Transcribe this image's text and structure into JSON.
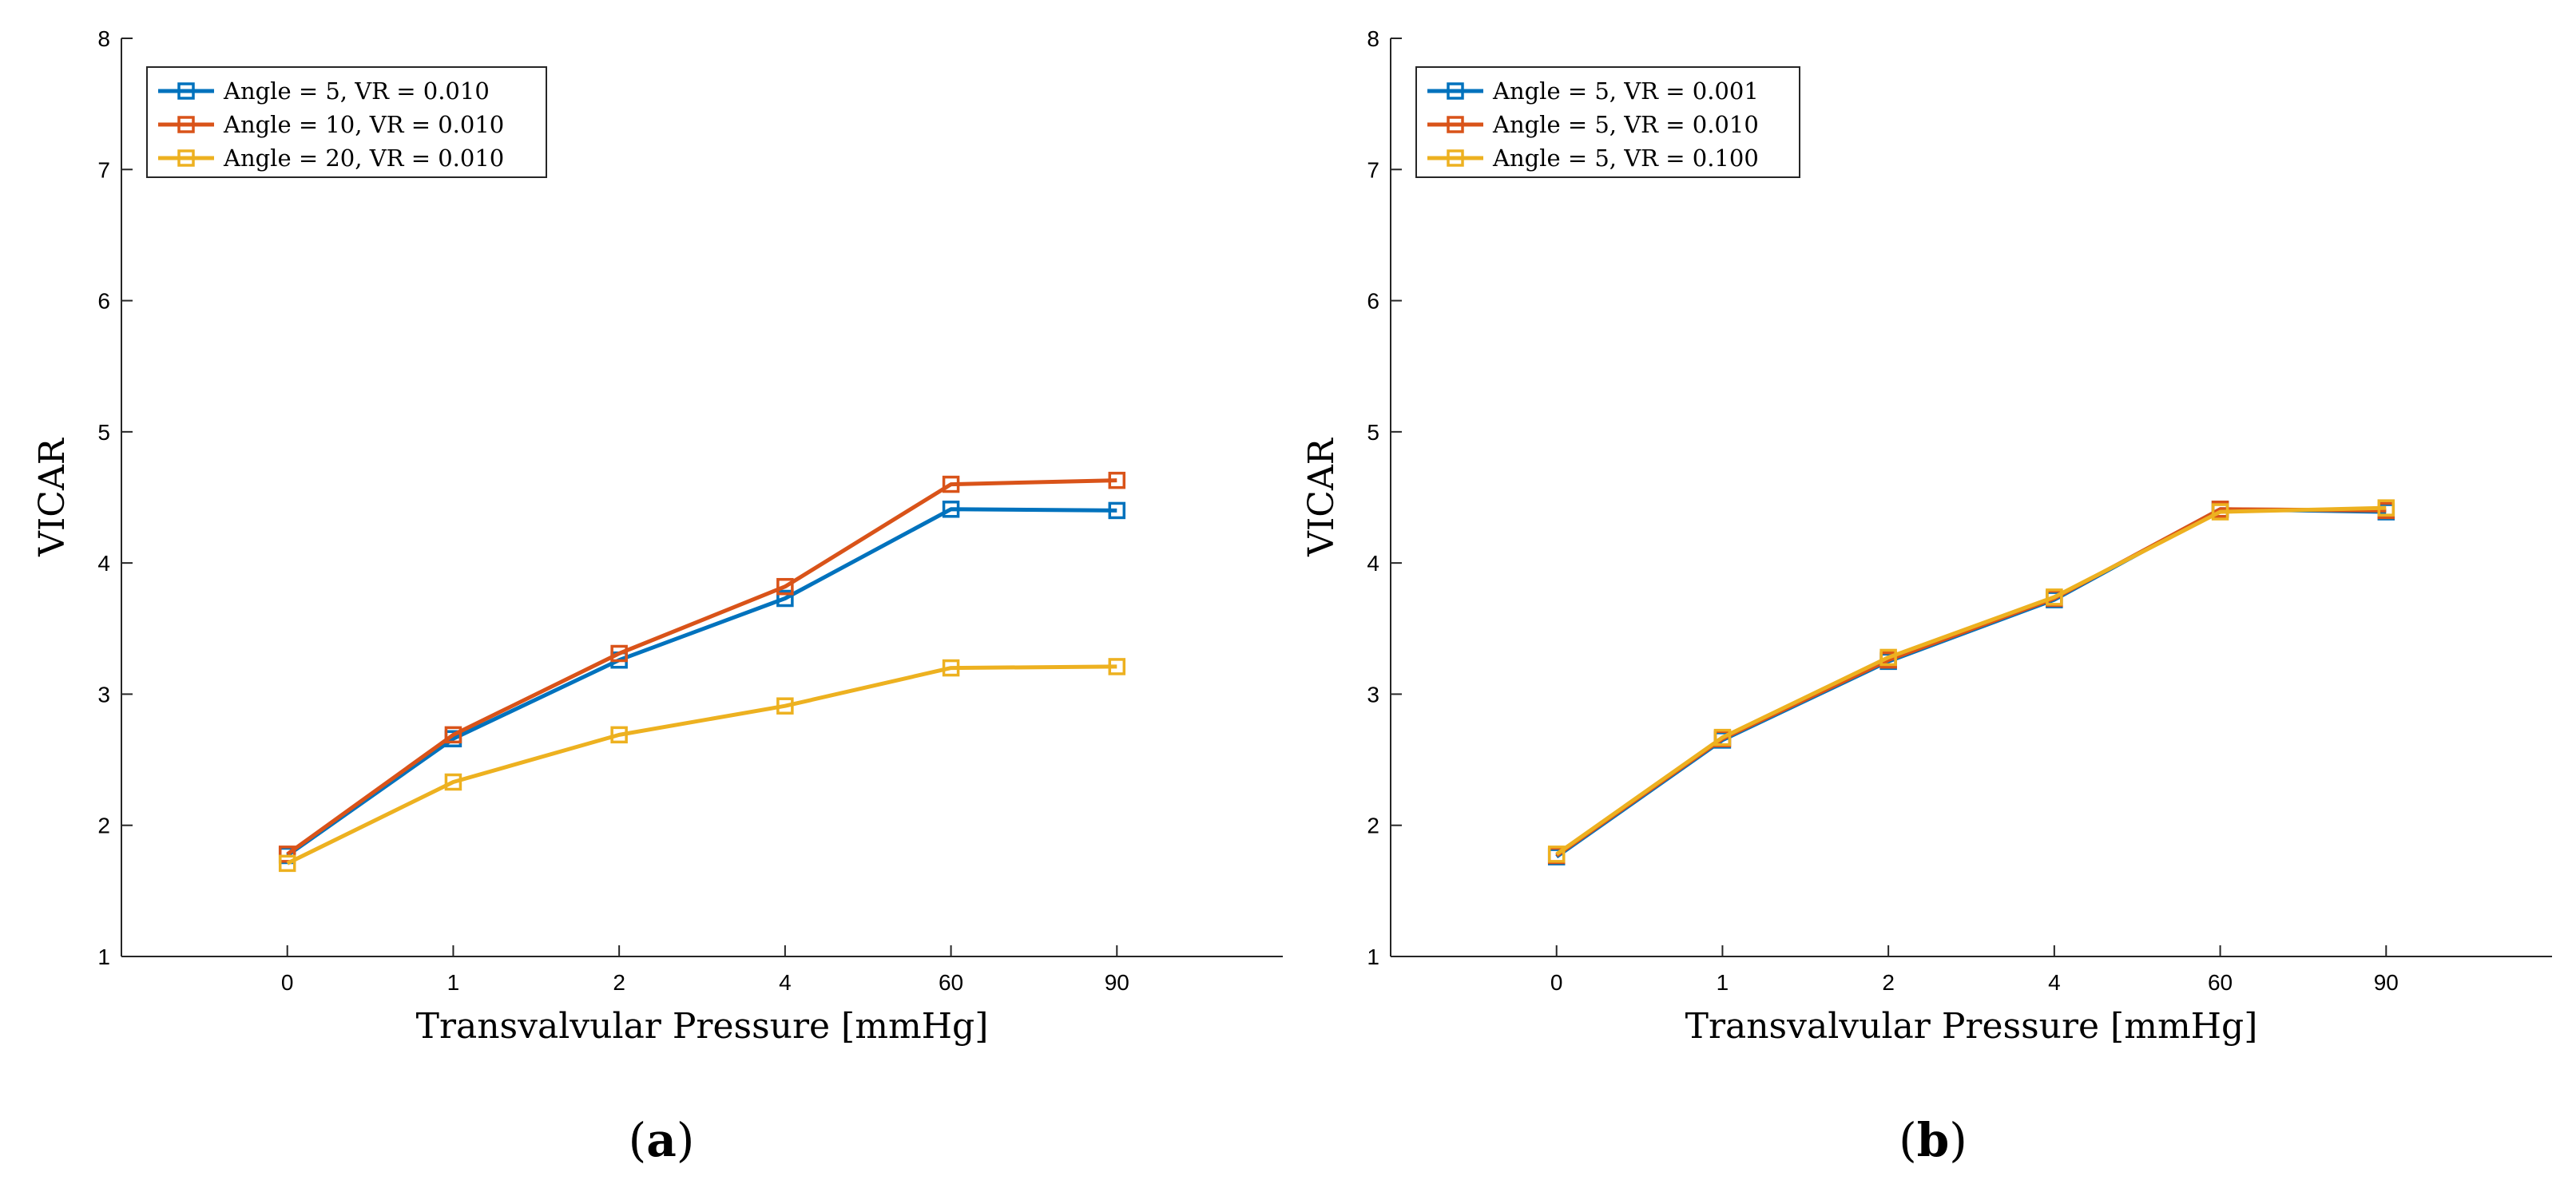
{
  "chart_data": [
    {
      "type": "line",
      "panel_label": "(a)",
      "panel_letter": "a",
      "xlabel": "Transvalvular Pressure [mmHg]",
      "ylabel": "VICAR",
      "categories": [
        "0",
        "1",
        "2",
        "4",
        "60",
        "90"
      ],
      "ylim": [
        1,
        8
      ],
      "yticks": [
        1,
        2,
        3,
        4,
        5,
        6,
        7,
        8
      ],
      "grid": false,
      "legend_position": "top-left",
      "marker": "square",
      "series": [
        {
          "name": "Angle = 5, VR = 0.010",
          "color": "#0072BD",
          "values": [
            1.77,
            2.66,
            3.26,
            3.73,
            4.41,
            4.4
          ]
        },
        {
          "name": "Angle = 10, VR = 0.010",
          "color": "#D95319",
          "values": [
            1.78,
            2.69,
            3.31,
            3.82,
            4.6,
            4.63
          ]
        },
        {
          "name": "Angle = 20, VR = 0.010",
          "color": "#EDB120",
          "values": [
            1.71,
            2.33,
            2.69,
            2.91,
            3.2,
            3.21
          ]
        }
      ]
    },
    {
      "type": "line",
      "panel_label": "(b)",
      "panel_letter": "b",
      "xlabel": "Transvalvular Pressure [mmHg]",
      "ylabel": "VICAR",
      "categories": [
        "0",
        "1",
        "2",
        "4",
        "60",
        "90"
      ],
      "ylim": [
        1,
        8
      ],
      "yticks": [
        1,
        2,
        3,
        4,
        5,
        6,
        7,
        8
      ],
      "grid": false,
      "legend_position": "top-left",
      "marker": "square",
      "series": [
        {
          "name": "Angle = 5, VR = 0.001",
          "color": "#0072BD",
          "values": [
            1.76,
            2.65,
            3.25,
            3.72,
            4.41,
            4.39
          ]
        },
        {
          "name": "Angle = 5, VR = 0.010",
          "color": "#D95319",
          "values": [
            1.77,
            2.66,
            3.26,
            3.73,
            4.41,
            4.4
          ]
        },
        {
          "name": "Angle = 5, VR = 0.100",
          "color": "#EDB120",
          "values": [
            1.78,
            2.67,
            3.28,
            3.74,
            4.39,
            4.42
          ]
        }
      ]
    }
  ]
}
